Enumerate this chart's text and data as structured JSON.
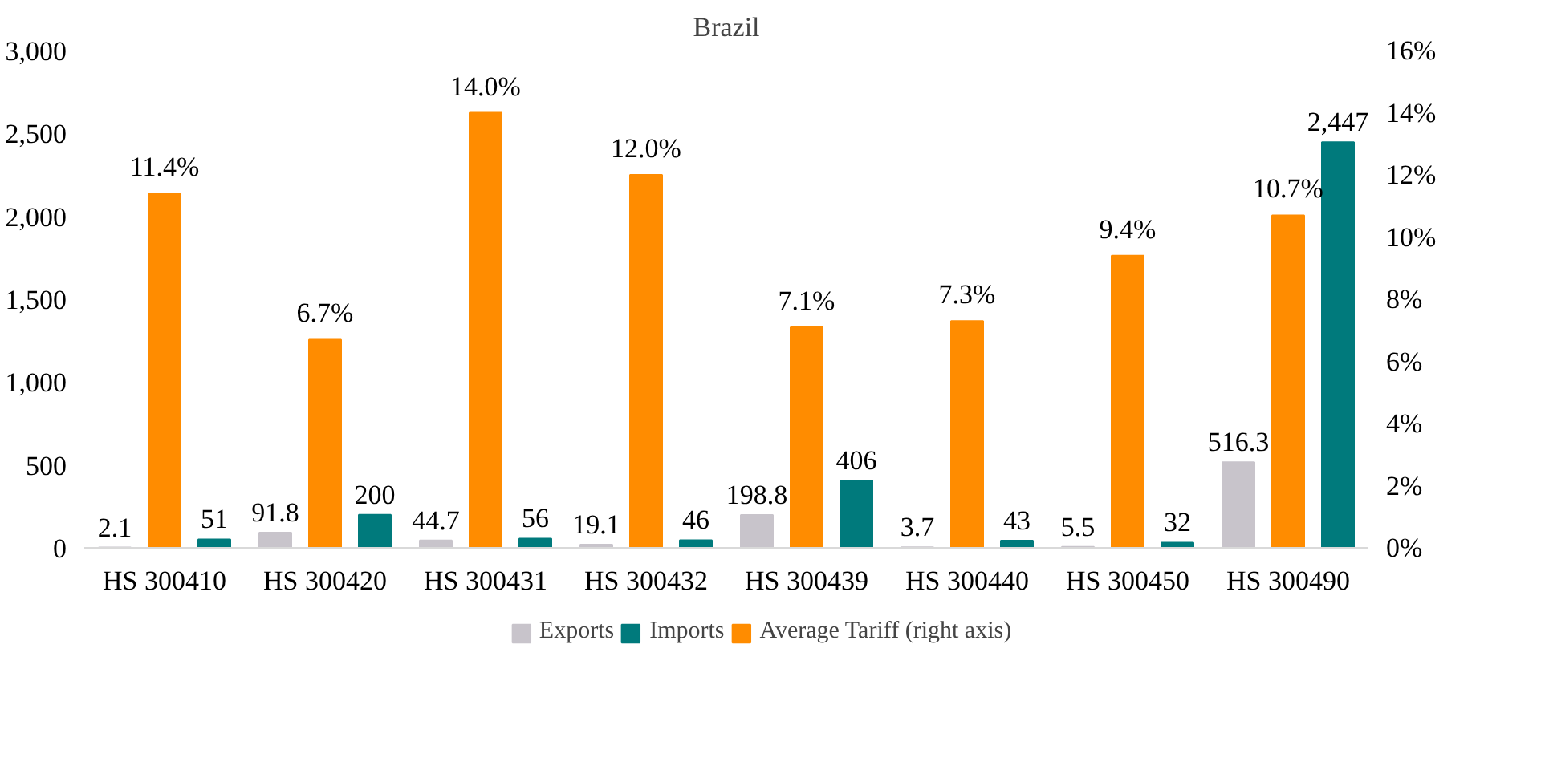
{
  "chart_data": {
    "type": "bar",
    "title": "Brazil",
    "categories": [
      "HS 300410",
      "HS 300420",
      "HS 300431",
      "HS 300432",
      "HS 300439",
      "HS 300440",
      "HS 300450",
      "HS 300490"
    ],
    "series": [
      {
        "name": "Exports",
        "color": "#c8c4cb",
        "values": [
          2.1,
          91.8,
          44.7,
          19.1,
          198.8,
          3.7,
          5.5,
          516.3
        ],
        "value_labels": [
          "2.1",
          "91.8",
          "44.7",
          "19.1",
          "198.8",
          "3.7",
          "5.5",
          "516.3"
        ]
      },
      {
        "name": "Imports",
        "color": "#007a7c",
        "values": [
          51,
          200,
          56,
          46,
          406,
          43,
          32,
          2447
        ],
        "value_labels": [
          "51",
          "200",
          "56",
          "46",
          "406",
          "43",
          "32",
          "2,447"
        ]
      },
      {
        "name": "Average Tariff (right axis)",
        "color": "#ff8c00",
        "axis": "y2",
        "values": [
          11.4,
          6.7,
          14.0,
          12.0,
          7.1,
          7.3,
          9.4,
          10.7
        ],
        "value_labels": [
          "11.4%",
          "6.7%",
          "14.0%",
          "12.0%",
          "7.1%",
          "7.3%",
          "9.4%",
          "10.7%"
        ]
      }
    ],
    "ylim": [
      0,
      3000
    ],
    "yticks": [
      0,
      {
        "value": 500,
        "label": "500"
      },
      {
        "value": 1000,
        "label": "1,000"
      },
      {
        "value": 1500,
        "label": "1,500"
      },
      {
        "value": 2000,
        "label": "2,000"
      },
      {
        "value": 2500,
        "label": "2,500"
      },
      {
        "value": 3000,
        "label": "3,000"
      }
    ],
    "y2lim": [
      0,
      16
    ],
    "y2ticks": [
      {
        "value": 0,
        "label": "0%"
      },
      {
        "value": 2,
        "label": "2%"
      },
      {
        "value": 4,
        "label": "4%"
      },
      {
        "value": 6,
        "label": "6%"
      },
      {
        "value": 8,
        "label": "8%"
      },
      {
        "value": 10,
        "label": "10%"
      },
      {
        "value": 12,
        "label": "12%"
      },
      {
        "value": 14,
        "label": "14%"
      },
      {
        "value": 16,
        "label": "16%"
      }
    ],
    "grid": false,
    "legend": "bottom"
  }
}
